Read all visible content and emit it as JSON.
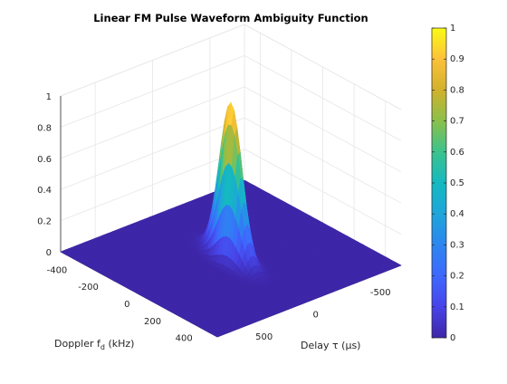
{
  "chart_data": {
    "type": "surface",
    "title": "Linear FM Pulse Waveform Ambiguity Function",
    "xlabel": "Delay τ (μs)",
    "ylabel_base": "Doppler f",
    "ylabel_sub": "d",
    "ylabel_unit": " (kHz)",
    "xlim": [
      -800,
      800
    ],
    "ylim": [
      -500,
      500
    ],
    "zlim": [
      0,
      1
    ],
    "xticks": [
      "-500",
      "0",
      "500"
    ],
    "xtick_values": [
      -500,
      0,
      500
    ],
    "yticks": [
      "-400",
      "-200",
      "0",
      "200",
      "400"
    ],
    "ytick_values": [
      -400,
      -200,
      0,
      200,
      400
    ],
    "zticks": [
      "0",
      "0.2",
      "0.4",
      "0.6",
      "0.8",
      "1"
    ],
    "ztick_values": [
      0,
      0.2,
      0.4,
      0.6,
      0.8,
      1
    ],
    "peak": {
      "delay": 0,
      "doppler": 0,
      "value": 1
    },
    "colormap": "parula",
    "colorbar": {
      "ticks": [
        "0",
        "0.1",
        "0.2",
        "0.3",
        "0.4",
        "0.5",
        "0.6",
        "0.7",
        "0.8",
        "0.9",
        "1"
      ],
      "tick_values": [
        0,
        0.1,
        0.2,
        0.3,
        0.4,
        0.5,
        0.6,
        0.7,
        0.8,
        0.9,
        1
      ]
    },
    "grid": true
  }
}
